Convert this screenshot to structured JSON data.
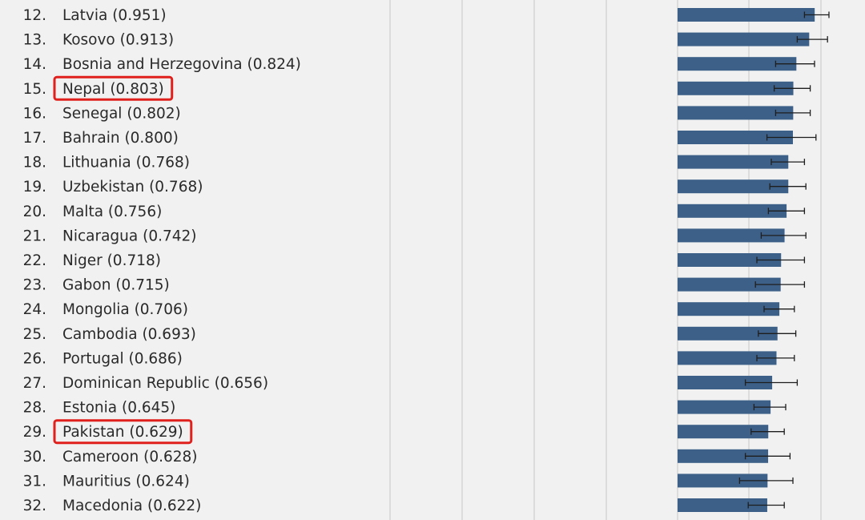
{
  "chart_data": {
    "type": "bar",
    "orientation": "horizontal",
    "colors": {
      "bar": "#3d6089",
      "highlight": "#e0201c",
      "errorbar": "#1e1e1e"
    },
    "highlighted": [
      "Nepal",
      "Pakistan"
    ],
    "rows": [
      {
        "rank": "12.",
        "country": "Latvia",
        "label": "Latvia (0.951)",
        "value": 0.951,
        "err_low": 0.88,
        "err_high": 1.05
      },
      {
        "rank": "13.",
        "country": "Kosovo",
        "label": "Kosovo (0.913)",
        "value": 0.913,
        "err_low": 0.83,
        "err_high": 1.04
      },
      {
        "rank": "14.",
        "country": "Bosnia and Herzegovina",
        "label": "Bosnia and Herzegovina (0.824)",
        "value": 0.824,
        "err_low": 0.68,
        "err_high": 0.95
      },
      {
        "rank": "15.",
        "country": "Nepal",
        "label": "Nepal (0.803)",
        "value": 0.803,
        "err_low": 0.67,
        "err_high": 0.92
      },
      {
        "rank": "16.",
        "country": "Senegal",
        "label": "Senegal (0.802)",
        "value": 0.802,
        "err_low": 0.68,
        "err_high": 0.92
      },
      {
        "rank": "17.",
        "country": "Bahrain",
        "label": "Bahrain (0.800)",
        "value": 0.8,
        "err_low": 0.62,
        "err_high": 0.96
      },
      {
        "rank": "18.",
        "country": "Lithuania",
        "label": "Lithuania (0.768)",
        "value": 0.768,
        "err_low": 0.65,
        "err_high": 0.88
      },
      {
        "rank": "19.",
        "country": "Uzbekistan",
        "label": "Uzbekistan (0.768)",
        "value": 0.768,
        "err_low": 0.64,
        "err_high": 0.89
      },
      {
        "rank": "20.",
        "country": "Malta",
        "label": "Malta (0.756)",
        "value": 0.756,
        "err_low": 0.63,
        "err_high": 0.88
      },
      {
        "rank": "21.",
        "country": "Nicaragua",
        "label": "Nicaragua (0.742)",
        "value": 0.742,
        "err_low": 0.58,
        "err_high": 0.89
      },
      {
        "rank": "22.",
        "country": "Niger",
        "label": "Niger (0.718)",
        "value": 0.718,
        "err_low": 0.55,
        "err_high": 0.88
      },
      {
        "rank": "23.",
        "country": "Gabon",
        "label": "Gabon (0.715)",
        "value": 0.715,
        "err_low": 0.54,
        "err_high": 0.88
      },
      {
        "rank": "24.",
        "country": "Mongolia",
        "label": "Mongolia (0.706)",
        "value": 0.706,
        "err_low": 0.6,
        "err_high": 0.81
      },
      {
        "rank": "25.",
        "country": "Cambodia",
        "label": "Cambodia (0.693)",
        "value": 0.693,
        "err_low": 0.56,
        "err_high": 0.82
      },
      {
        "rank": "26.",
        "country": "Portugal",
        "label": "Portugal (0.686)",
        "value": 0.686,
        "err_low": 0.55,
        "err_high": 0.81
      },
      {
        "rank": "27.",
        "country": "Dominican Republic",
        "label": "Dominican Republic (0.656)",
        "value": 0.656,
        "err_low": 0.47,
        "err_high": 0.83
      },
      {
        "rank": "28.",
        "country": "Estonia",
        "label": "Estonia (0.645)",
        "value": 0.645,
        "err_low": 0.53,
        "err_high": 0.75
      },
      {
        "rank": "29.",
        "country": "Pakistan",
        "label": "Pakistan (0.629)",
        "value": 0.629,
        "err_low": 0.51,
        "err_high": 0.74
      },
      {
        "rank": "30.",
        "country": "Cameroon",
        "label": "Cameroon (0.628)",
        "value": 0.628,
        "err_low": 0.47,
        "err_high": 0.78
      },
      {
        "rank": "31.",
        "country": "Mauritius",
        "label": "Mauritius (0.624)",
        "value": 0.624,
        "err_low": 0.43,
        "err_high": 0.8
      },
      {
        "rank": "32.",
        "country": "Macedonia",
        "label": "Macedonia (0.622)",
        "value": 0.622,
        "err_low": 0.49,
        "err_high": 0.74
      }
    ]
  }
}
